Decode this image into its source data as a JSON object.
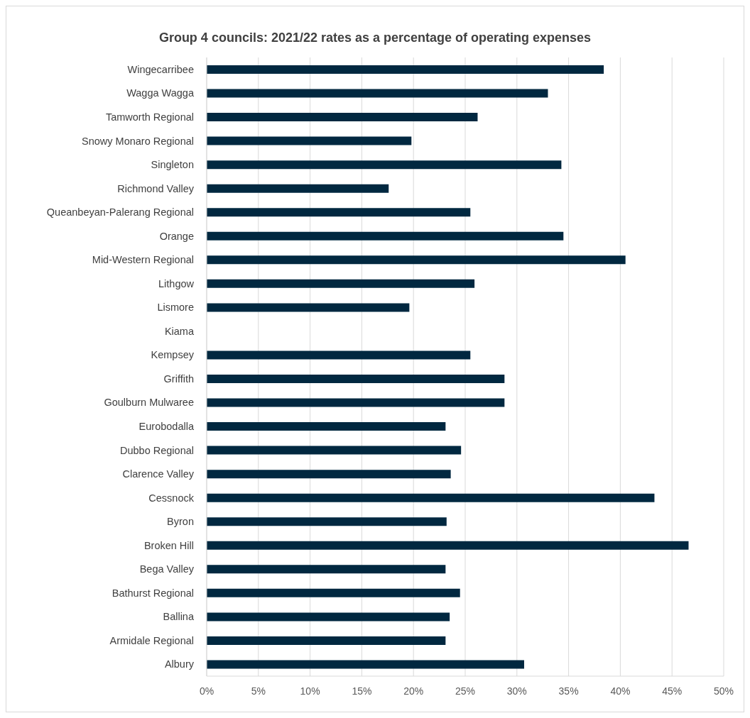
{
  "chart_data": {
    "type": "bar",
    "orientation": "horizontal",
    "title": "Group 4 councils: 2021/22 rates as a percentage of operating expenses",
    "categories": [
      "Wingecarribee",
      "Wagga Wagga",
      "Tamworth Regional",
      "Snowy Monaro Regional",
      "Singleton",
      "Richmond Valley",
      "Queanbeyan-Palerang Regional",
      "Orange",
      "Mid-Western Regional",
      "Lithgow",
      "Lismore",
      "Kiama",
      "Kempsey",
      "Griffith",
      "Goulburn Mulwaree",
      "Eurobodalla",
      "Dubbo Regional",
      "Clarence Valley",
      "Cessnock",
      "Byron",
      "Broken Hill",
      "Bega Valley",
      "Bathurst Regional",
      "Ballina",
      "Armidale Regional",
      "Albury"
    ],
    "values": [
      38.4,
      33.0,
      26.2,
      19.8,
      34.3,
      17.6,
      25.5,
      34.5,
      40.5,
      25.9,
      19.6,
      null,
      25.5,
      28.8,
      28.8,
      23.1,
      24.6,
      23.6,
      43.3,
      23.2,
      46.6,
      23.1,
      24.5,
      23.5,
      23.1,
      30.7
    ],
    "color": "#012840",
    "xlim": [
      0,
      50
    ],
    "xticks": [
      {
        "value": 0,
        "label": "0%"
      },
      {
        "value": 5,
        "label": "5%"
      },
      {
        "value": 10,
        "label": "10%"
      },
      {
        "value": 15,
        "label": "15%"
      },
      {
        "value": 20,
        "label": "20%"
      },
      {
        "value": 25,
        "label": "25%"
      },
      {
        "value": 30,
        "label": "30%"
      },
      {
        "value": 35,
        "label": "35%"
      },
      {
        "value": 40,
        "label": "40%"
      },
      {
        "value": 45,
        "label": "45%"
      },
      {
        "value": 50,
        "label": "50%"
      }
    ],
    "grid": "x",
    "legend": false
  }
}
